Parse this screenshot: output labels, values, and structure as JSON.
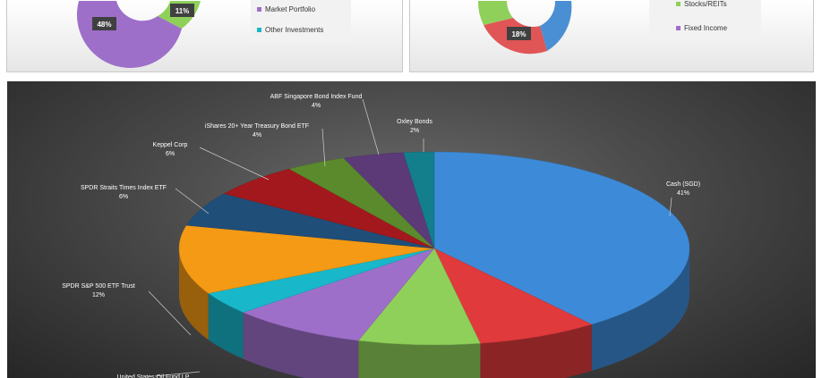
{
  "top_left": {
    "badges": [
      "48%",
      "11%"
    ],
    "legend": [
      {
        "label": "Market Portfolio",
        "color": "#9e6fc9"
      },
      {
        "label": "Other Investments",
        "color": "#18b7c9"
      }
    ]
  },
  "top_right": {
    "badges": [
      "18%"
    ],
    "legend": [
      {
        "label": "Stocks/REITs",
        "color": "#8fd05a"
      },
      {
        "label": "Fixed Income",
        "color": "#9e6fc9"
      }
    ]
  },
  "chart_data": {
    "type": "pie",
    "style": "3d",
    "slices": [
      {
        "label": "Cash (SGD)",
        "value": 41,
        "pct_label": "41%",
        "color": "#3d8bd8"
      },
      {
        "label": "",
        "value": 8,
        "pct_label": "",
        "color": "#e03a3c"
      },
      {
        "label": "",
        "value": 8,
        "pct_label": "",
        "color": "#8fd05a"
      },
      {
        "label": "",
        "value": 9,
        "pct_label": "",
        "color": "#9e6fc9"
      },
      {
        "label": "United States Oil Fund LP",
        "value": 4,
        "pct_label": "",
        "color": "#18b7c9"
      },
      {
        "label": "SPDR S&P 500 ETF Trust",
        "value": 12,
        "pct_label": "12%",
        "color": "#f59a14"
      },
      {
        "label": "SPDR Straits Times Index ETF",
        "value": 6,
        "pct_label": "6%",
        "color": "#1f4e79"
      },
      {
        "label": "Keppel Corp",
        "value": 6,
        "pct_label": "6%",
        "color": "#a3181c"
      },
      {
        "label": "iShares 20+ Year Treasury Bond ETF",
        "value": 4,
        "pct_label": "4%",
        "color": "#5a8a2c"
      },
      {
        "label": "ABF Singapore Bond Index Fund",
        "value": 4,
        "pct_label": "4%",
        "color": "#5c3a78"
      },
      {
        "label": "Oxley Bonds",
        "value": 2,
        "pct_label": "2%",
        "color": "#137f8c"
      }
    ]
  }
}
